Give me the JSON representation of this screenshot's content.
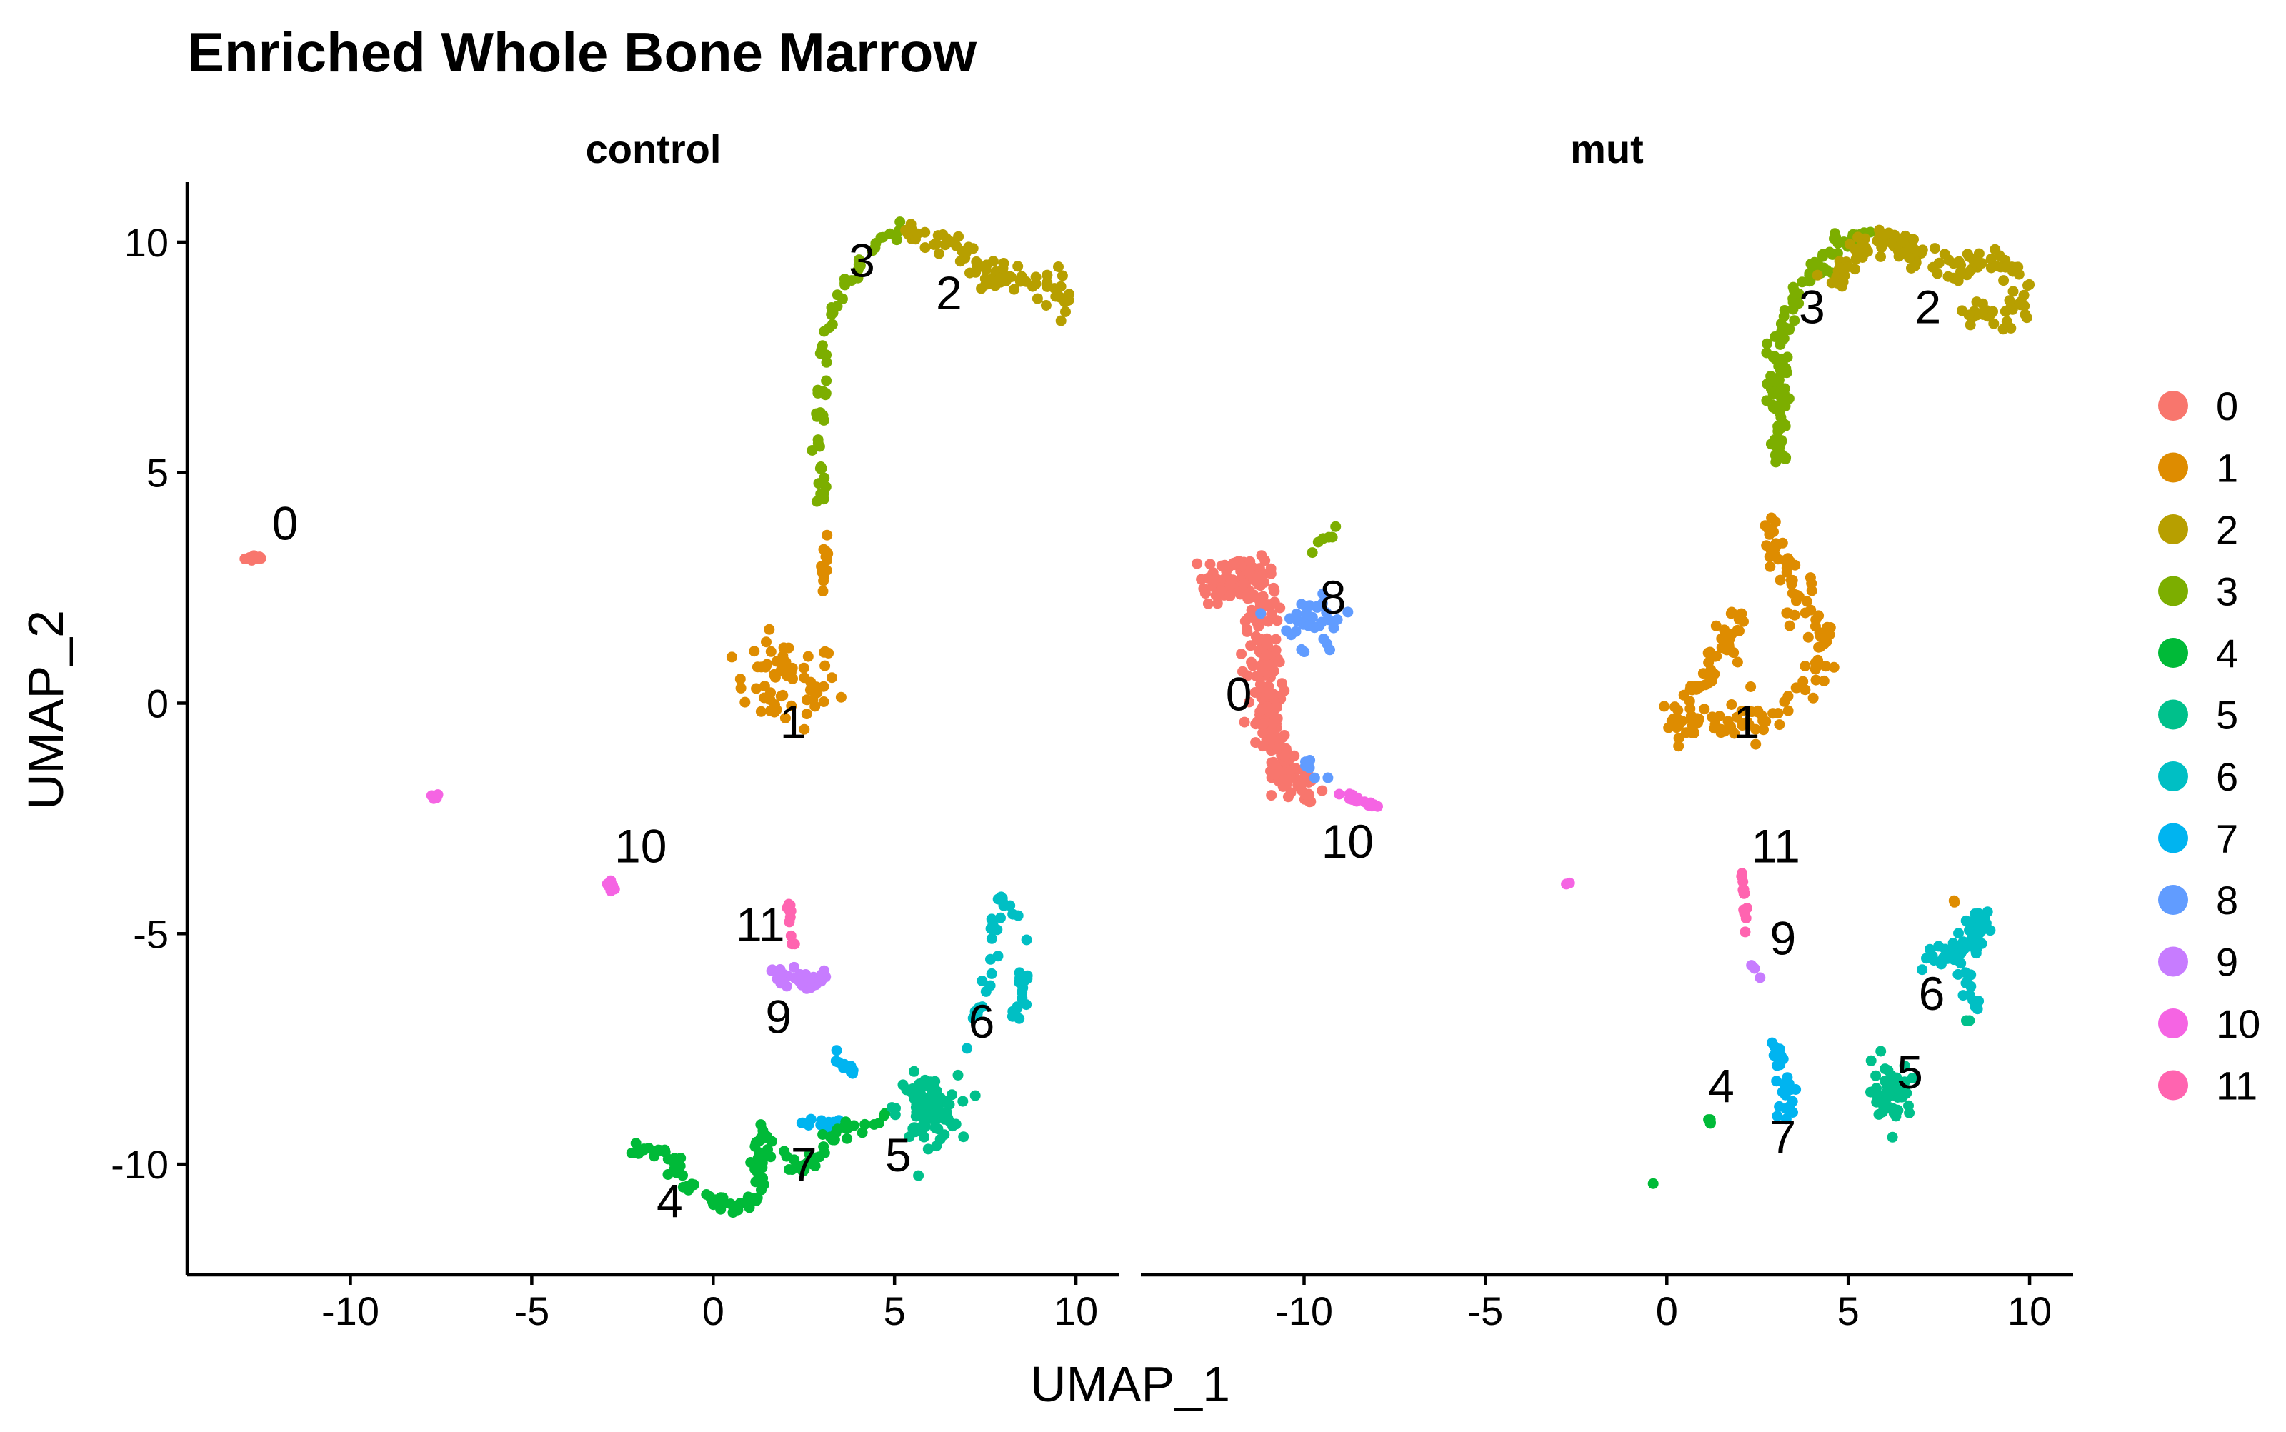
{
  "chart_data": {
    "type": "scatter",
    "title": "Enriched Whole Bone Marrow",
    "xlabel": "UMAP_1",
    "ylabel": "UMAP_2",
    "xlim": [
      -14.5,
      11.2
    ],
    "ylim": [
      -12.4,
      11.3
    ],
    "x_ticks": [
      -10,
      -5,
      0,
      5,
      10
    ],
    "y_ticks": [
      10,
      5,
      0,
      -5,
      -10
    ],
    "facet_by": "orig.ident",
    "legend_position": "right",
    "grid": false,
    "colors": {
      "0": "#F8766D",
      "1": "#DE8C00",
      "2": "#B79F00",
      "3": "#7CAE00",
      "4": "#00BA38",
      "5": "#00C08B",
      "6": "#00BFC4",
      "7": "#00B4F0",
      "8": "#619CFF",
      "9": "#C77CFF",
      "10": "#F564E3",
      "11": "#FF64B0"
    },
    "legend": [
      "0",
      "1",
      "2",
      "3",
      "4",
      "5",
      "6",
      "7",
      "8",
      "9",
      "10",
      "11"
    ],
    "panels": [
      {
        "name": "control",
        "clusters": [
          {
            "cluster": "0",
            "shape": "blob",
            "center": [
              -12.6,
              3.15
            ],
            "spread": [
              0.25,
              0.06
            ],
            "n": 12,
            "label_pos": [
              -11.8,
              3.9
            ]
          },
          {
            "cluster": "10",
            "shape": "blob",
            "center": [
              -7.7,
              -2.03
            ],
            "spread": [
              0.15,
              0.06
            ],
            "n": 6
          },
          {
            "cluster": "10",
            "shape": "blob",
            "center": [
              -2.8,
              -3.95
            ],
            "spread": [
              0.12,
              0.08
            ],
            "n": 8,
            "label_pos": [
              -2.0,
              -3.1
            ]
          },
          {
            "cluster": "1",
            "shape": "blob",
            "center": [
              3.1,
              3.0
            ],
            "spread": [
              0.1,
              0.7
            ],
            "n": 12
          },
          {
            "cluster": "1",
            "shape": "blob",
            "center": [
              2.0,
              0.4
            ],
            "spread": [
              1.2,
              0.8
            ],
            "n": 60,
            "label_pos": [
              2.2,
              -0.4
            ]
          },
          {
            "cluster": "3",
            "shape": "curve",
            "path": [
              [
                3.0,
                4.3
              ],
              [
                2.9,
                6.0
              ],
              [
                3.1,
                8.0
              ],
              [
                3.6,
                9.0
              ],
              [
                4.5,
                10.0
              ],
              [
                5.2,
                10.2
              ]
            ],
            "spread": 0.18,
            "n": 60,
            "label_pos": [
              4.1,
              9.6
            ]
          },
          {
            "cluster": "2",
            "shape": "curve",
            "path": [
              [
                5.2,
                10.2
              ],
              [
                6.5,
                10.0
              ],
              [
                7.5,
                9.3
              ],
              [
                8.5,
                9.2
              ],
              [
                9.7,
                9.1
              ],
              [
                9.8,
                8.4
              ]
            ],
            "spread": 0.3,
            "n": 80,
            "label_pos": [
              6.5,
              8.9
            ]
          },
          {
            "cluster": "11",
            "shape": "curve",
            "path": [
              [
                2.1,
                -3.9
              ],
              [
                2.1,
                -4.6
              ],
              [
                2.2,
                -5.3
              ]
            ],
            "spread": 0.07,
            "n": 10,
            "label_pos": [
              1.3,
              -4.8
            ]
          },
          {
            "cluster": "9",
            "shape": "blob",
            "center": [
              2.4,
              -6.0
            ],
            "spread": [
              0.5,
              0.2
            ],
            "n": 40,
            "label_pos": [
              1.8,
              -6.8
            ]
          },
          {
            "cluster": "7",
            "shape": "curve",
            "path": [
              [
                3.3,
                -7.5
              ],
              [
                3.8,
                -8.0
              ]
            ],
            "spread": 0.12,
            "n": 10
          },
          {
            "cluster": "7",
            "shape": "blob",
            "center": [
              3.2,
              -9.1
            ],
            "spread": [
              0.6,
              0.15
            ],
            "n": 25,
            "label_pos": [
              2.5,
              -10.0
            ]
          },
          {
            "cluster": "4",
            "shape": "curve",
            "path": [
              [
                -2.1,
                -9.7
              ],
              [
                -1.4,
                -9.8
              ],
              [
                -0.6,
                -10.5
              ],
              [
                0.5,
                -11.0
              ],
              [
                1.2,
                -10.8
              ],
              [
                1.3,
                -9.3
              ],
              [
                2.4,
                -10.2
              ],
              [
                3.6,
                -9.2
              ],
              [
                4.8,
                -9.0
              ]
            ],
            "spread": 0.18,
            "n": 120,
            "label_pos": [
              -1.2,
              -10.8
            ]
          },
          {
            "cluster": "5",
            "shape": "blob",
            "center": [
              5.9,
              -8.8
            ],
            "spread": [
              0.7,
              0.6
            ],
            "n": 90,
            "label_pos": [
              5.1,
              -9.8
            ]
          },
          {
            "cluster": "6",
            "shape": "curve",
            "path": [
              [
                7.0,
                -7.5
              ],
              [
                7.5,
                -6.3
              ],
              [
                7.8,
                -5.0
              ],
              [
                8.0,
                -4.2
              ],
              [
                8.8,
                -5.5
              ],
              [
                8.3,
                -7.0
              ]
            ],
            "spread": 0.25,
            "n": 45,
            "label_pos": [
              7.4,
              -6.9
            ]
          }
        ]
      },
      {
        "name": "mut",
        "clusters": [
          {
            "cluster": "0",
            "shape": "curve",
            "path": [
              [
                -12.6,
                2.5
              ],
              [
                -11.3,
                2.8
              ],
              [
                -11.1,
                1.2
              ],
              [
                -11.0,
                -0.5
              ],
              [
                -10.5,
                -1.5
              ],
              [
                -9.8,
                -1.9
              ]
            ],
            "spread": 0.45,
            "n": 320,
            "label_pos": [
              -11.8,
              0.2
            ]
          },
          {
            "cluster": "8",
            "shape": "blob",
            "center": [
              -9.6,
              1.7
            ],
            "spread": [
              0.8,
              0.45
            ],
            "n": 35,
            "label_pos": [
              -9.2,
              2.3
            ]
          },
          {
            "cluster": "8",
            "shape": "curve",
            "path": [
              [
                -10.0,
                -1.2
              ],
              [
                -9.2,
                -1.8
              ]
            ],
            "spread": 0.15,
            "n": 8
          },
          {
            "cluster": "3",
            "shape": "curve",
            "path": [
              [
                -9.9,
                3.3
              ],
              [
                -9.0,
                3.8
              ]
            ],
            "spread": 0.1,
            "n": 6
          },
          {
            "cluster": "10",
            "shape": "curve",
            "path": [
              [
                -9.0,
                -2.0
              ],
              [
                -8.0,
                -2.2
              ]
            ],
            "spread": 0.1,
            "n": 15,
            "label_pos": [
              -8.8,
              -3.0
            ]
          },
          {
            "cluster": "10",
            "shape": "blob",
            "center": [
              -2.7,
              -3.9
            ],
            "spread": [
              0.04,
              0.04
            ],
            "n": 2
          },
          {
            "cluster": "1",
            "shape": "curve",
            "path": [
              [
                2.8,
                3.9
              ],
              [
                3.5,
                2.5
              ],
              [
                4.3,
                1.0
              ],
              [
                3.5,
                0.0
              ],
              [
                2.0,
                -0.5
              ],
              [
                0.2,
                -0.5
              ],
              [
                2.0,
                1.8
              ]
            ],
            "spread": 0.4,
            "n": 180,
            "label_pos": [
              2.2,
              -0.4
            ]
          },
          {
            "cluster": "3",
            "shape": "curve",
            "path": [
              [
                3.1,
                5.2
              ],
              [
                3.0,
                6.5
              ],
              [
                3.2,
                8.0
              ],
              [
                3.8,
                9.2
              ],
              [
                4.8,
                10.0
              ],
              [
                5.6,
                10.1
              ]
            ],
            "spread": 0.25,
            "n": 130,
            "label_pos": [
              4.0,
              8.6
            ]
          },
          {
            "cluster": "2",
            "shape": "curve",
            "path": [
              [
                4.5,
                9.0
              ],
              [
                5.5,
                10.1
              ],
              [
                6.8,
                9.8
              ],
              [
                7.8,
                9.4
              ],
              [
                9.3,
                9.6
              ],
              [
                9.9,
                8.8
              ],
              [
                9.2,
                8.3
              ],
              [
                8.3,
                8.6
              ]
            ],
            "spread": 0.3,
            "n": 150,
            "label_pos": [
              7.2,
              8.6
            ]
          },
          {
            "cluster": "11",
            "shape": "curve",
            "path": [
              [
                2.1,
                -3.5
              ],
              [
                2.1,
                -4.4
              ],
              [
                2.2,
                -5.2
              ]
            ],
            "spread": 0.08,
            "n": 12,
            "label_pos": [
              3.0,
              -3.1
            ]
          },
          {
            "cluster": "9",
            "shape": "curve",
            "path": [
              [
                2.3,
                -5.6
              ],
              [
                2.6,
                -6.0
              ]
            ],
            "spread": 0.05,
            "n": 3,
            "label_pos": [
              3.2,
              -5.1
            ]
          },
          {
            "cluster": "7",
            "shape": "curve",
            "path": [
              [
                3.0,
                -7.3
              ],
              [
                3.3,
                -8.3
              ],
              [
                3.3,
                -9.2
              ]
            ],
            "spread": 0.2,
            "n": 25,
            "label_pos": [
              3.2,
              -9.4
            ]
          },
          {
            "cluster": "4",
            "shape": "blob",
            "center": [
              1.2,
              -9.0
            ],
            "spread": [
              0.04,
              0.1
            ],
            "n": 4,
            "label_pos": [
              1.5,
              -8.3
            ]
          },
          {
            "cluster": "4",
            "shape": "blob",
            "center": [
              -0.4,
              -10.4
            ],
            "spread": [
              0.02,
              0.02
            ],
            "n": 1
          },
          {
            "cluster": "5",
            "shape": "blob",
            "center": [
              6.2,
              -8.4
            ],
            "spread": [
              0.45,
              0.5
            ],
            "n": 60,
            "label_pos": [
              6.7,
              -8.0
            ]
          },
          {
            "cluster": "6",
            "shape": "curve",
            "path": [
              [
                7.0,
                -5.6
              ],
              [
                8.2,
                -5.4
              ],
              [
                8.8,
                -5.0
              ],
              [
                8.5,
                -4.5
              ],
              [
                8.3,
                -6.5
              ]
            ],
            "spread": 0.35,
            "n": 70,
            "label_pos": [
              7.3,
              -6.3
            ]
          },
          {
            "cluster": "1",
            "shape": "blob",
            "center": [
              7.9,
              -4.3
            ],
            "spread": [
              0.03,
              0.03
            ],
            "n": 2
          },
          {
            "cluster": "5",
            "shape": "blob",
            "center": [
              8.3,
              -6.9
            ],
            "spread": [
              0.05,
              0.05
            ],
            "n": 3
          }
        ]
      }
    ]
  }
}
